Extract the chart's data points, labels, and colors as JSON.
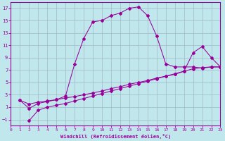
{
  "xlabel": "Windchill (Refroidissement éolien,°C)",
  "bg_color": "#c0e8ec",
  "line_color": "#990099",
  "grid_color": "#a0b8c8",
  "xlim": [
    0,
    23
  ],
  "ylim": [
    -2,
    18
  ],
  "xticks": [
    0,
    1,
    2,
    3,
    4,
    5,
    6,
    7,
    8,
    9,
    10,
    11,
    12,
    13,
    14,
    15,
    16,
    17,
    18,
    19,
    20,
    21,
    22,
    23
  ],
  "yticks": [
    -1,
    1,
    3,
    5,
    7,
    9,
    11,
    13,
    15,
    17
  ],
  "curve1_x": [
    1,
    2,
    3,
    4,
    5,
    6,
    7,
    8,
    9,
    10,
    11,
    12,
    13,
    14,
    15,
    16,
    17,
    18,
    19,
    20,
    21,
    22,
    23
  ],
  "curve1_y": [
    2.1,
    0.8,
    1.6,
    1.9,
    2.2,
    2.8,
    8.0,
    12.1,
    14.8,
    15.0,
    15.8,
    16.2,
    17.0,
    17.2,
    15.8,
    12.5,
    8.0,
    7.5,
    7.5,
    7.5,
    7.3,
    7.5,
    7.5
  ],
  "curve2_x": [
    1,
    2,
    3,
    4,
    5,
    6,
    7,
    8,
    9,
    10,
    11,
    12,
    13,
    14,
    15,
    16,
    17,
    18,
    19,
    20,
    21,
    22,
    23
  ],
  "curve2_y": [
    2.1,
    1.5,
    1.8,
    2.0,
    2.2,
    2.5,
    2.7,
    3.0,
    3.3,
    3.6,
    4.0,
    4.3,
    4.7,
    5.0,
    5.3,
    5.7,
    6.0,
    6.3,
    6.8,
    9.8,
    10.8,
    9.0,
    7.5
  ],
  "curve3_x": [
    2,
    3,
    4,
    5,
    6,
    7,
    8,
    9,
    10,
    11,
    12,
    13,
    14,
    15,
    16,
    17,
    18,
    19,
    20,
    21,
    22,
    23
  ],
  "curve3_y": [
    -1.2,
    0.5,
    1.0,
    1.3,
    1.6,
    2.0,
    2.4,
    2.8,
    3.2,
    3.6,
    4.0,
    4.4,
    4.8,
    5.2,
    5.6,
    6.0,
    6.4,
    6.8,
    7.2,
    7.4,
    7.5,
    7.5
  ]
}
